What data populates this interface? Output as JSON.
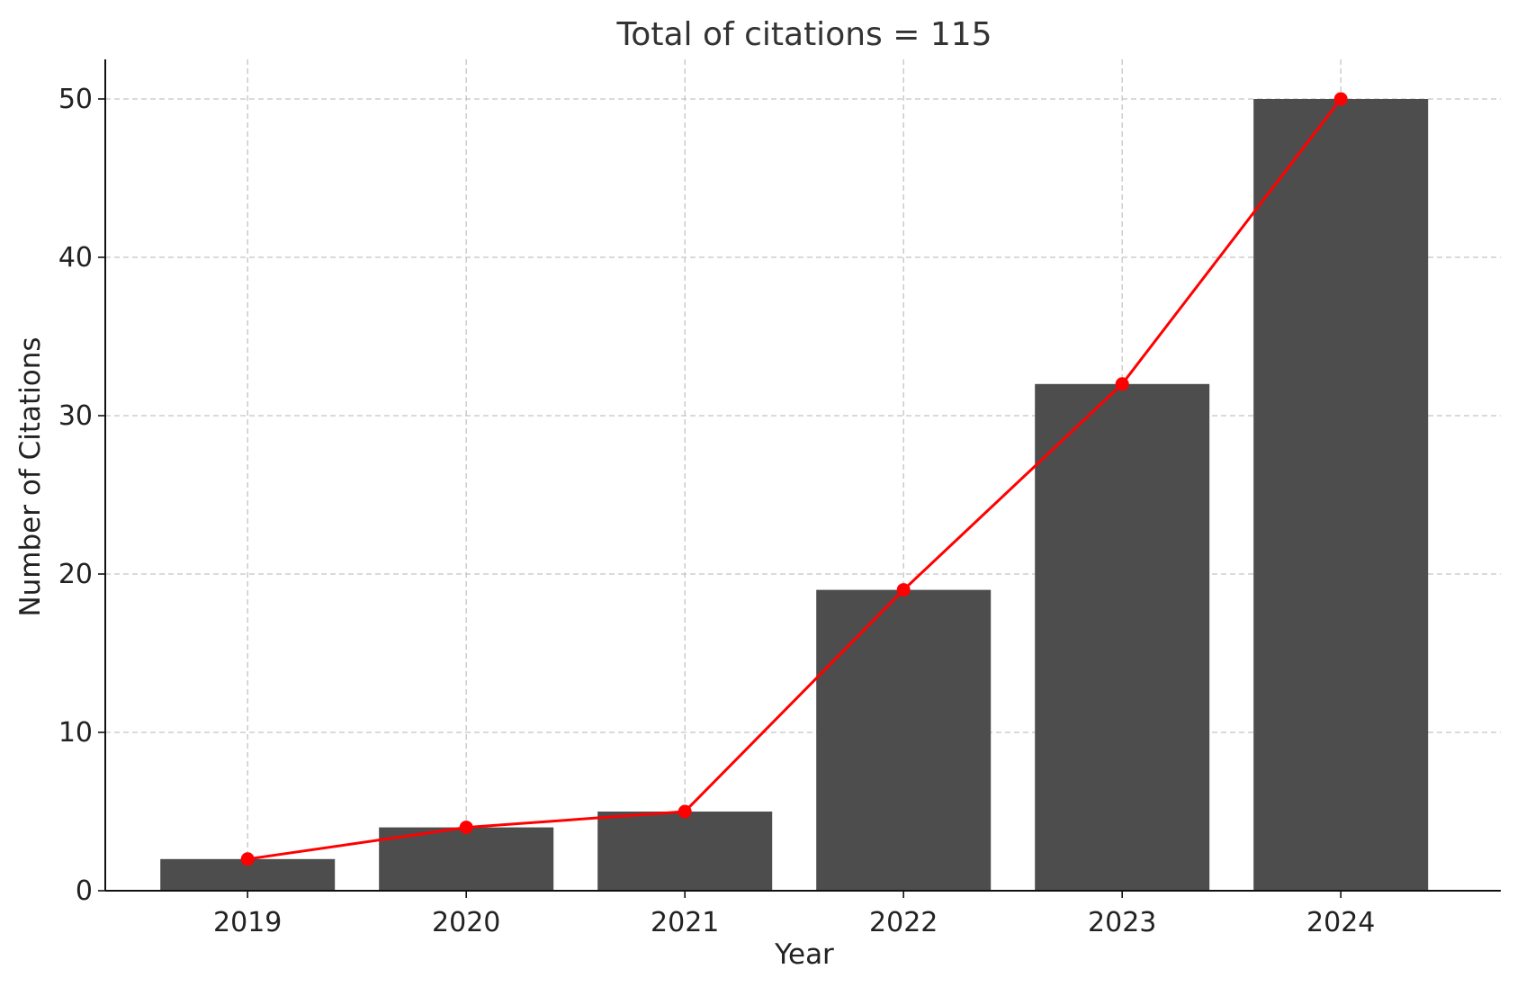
{
  "chart_data": {
    "type": "bar",
    "title": "Total of citations = 115",
    "xlabel": "Year",
    "ylabel": "Number of Citations",
    "categories": [
      "2019",
      "2020",
      "2021",
      "2022",
      "2023",
      "2024"
    ],
    "series": [
      {
        "type": "bar",
        "values": [
          2,
          4,
          5,
          19,
          32,
          50
        ],
        "color": "#4d4d4d"
      },
      {
        "type": "line",
        "values": [
          2,
          4,
          5,
          19,
          32,
          50
        ],
        "color": "#ff0000",
        "markers": true
      }
    ],
    "ylim": [
      0,
      52.5
    ],
    "yticks": [
      0,
      10,
      20,
      30,
      40,
      50
    ],
    "grid": true
  }
}
